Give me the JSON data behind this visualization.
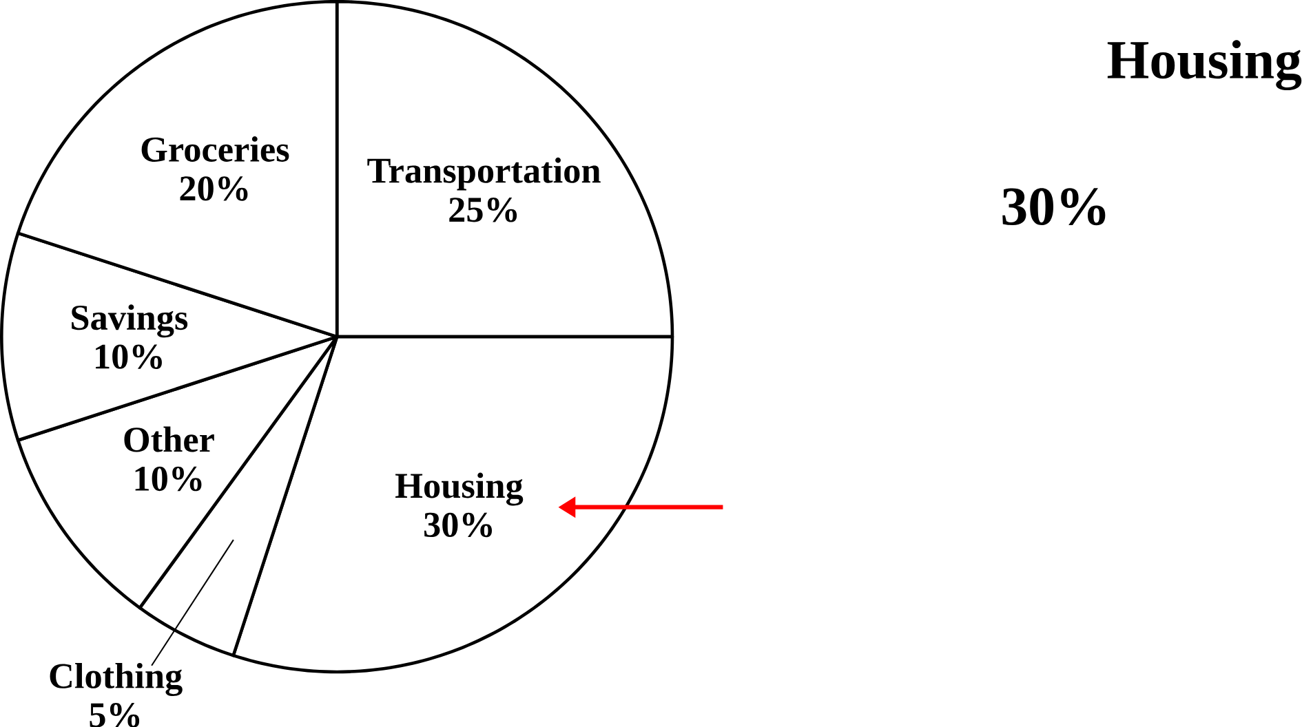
{
  "chart_data": {
    "type": "pie",
    "categories": [
      "Transportation",
      "Housing",
      "Clothing",
      "Other",
      "Savings",
      "Groceries"
    ],
    "values": [
      25,
      30,
      5,
      10,
      10,
      20
    ],
    "value_labels": [
      "25%",
      "30%",
      "5%",
      "10%",
      "10%",
      "20%"
    ],
    "colors": [
      "#ffffff",
      "#ffffff",
      "#ffffff",
      "#ffffff",
      "#ffffff",
      "#ffffff"
    ],
    "annotations": [
      "Housing",
      "30%"
    ]
  }
}
